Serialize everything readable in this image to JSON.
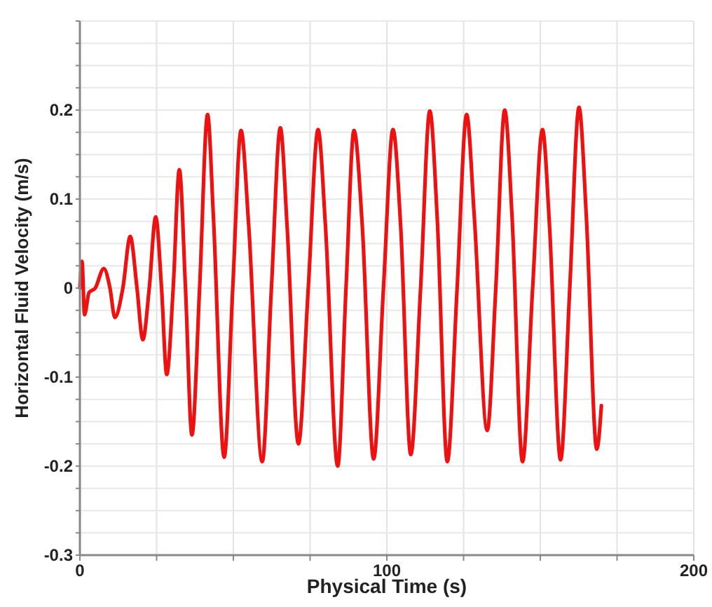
{
  "chart_data": {
    "type": "line",
    "xlabel": "Physical Time (s)",
    "ylabel": "Horizontal Fluid Velocity (m/s)",
    "xlim": [
      0,
      200
    ],
    "ylim": [
      -0.3,
      0.3
    ],
    "xticks": [
      0,
      {
        "value": 25,
        "label": null
      },
      {
        "value": 50,
        "label": null
      },
      {
        "value": 75,
        "label": null
      },
      100,
      {
        "value": 125,
        "label": null
      },
      {
        "value": 150,
        "label": null
      },
      {
        "value": 175,
        "label": null
      },
      200
    ],
    "yticks": [
      -0.3,
      {
        "value": -0.275,
        "label": null
      },
      {
        "value": -0.25,
        "label": null
      },
      {
        "value": -0.225,
        "label": null
      },
      -0.2,
      {
        "value": -0.175,
        "label": null
      },
      {
        "value": -0.15,
        "label": null
      },
      {
        "value": -0.125,
        "label": null
      },
      -0.1,
      {
        "value": -0.075,
        "label": null
      },
      {
        "value": -0.05,
        "label": null
      },
      {
        "value": -0.025,
        "label": null
      },
      0,
      {
        "value": 0.025,
        "label": null
      },
      {
        "value": 0.05,
        "label": null
      },
      {
        "value": 0.075,
        "label": null
      },
      0.1,
      {
        "value": 0.125,
        "label": null
      },
      {
        "value": 0.15,
        "label": null
      },
      {
        "value": 0.175,
        "label": null
      },
      0.2,
      {
        "value": 0.225,
        "label": null
      },
      {
        "value": 0.25,
        "label": null
      },
      {
        "value": 0.275,
        "label": null
      },
      {
        "value": 0.3,
        "label": null
      }
    ],
    "grid": true,
    "marker": "none",
    "line_style": "solid",
    "series": [
      {
        "color": "#ee1111",
        "x": [
          0,
          0.7,
          1.5,
          3,
          5,
          7.8,
          9.8,
          11.4,
          14,
          16.4,
          18.6,
          20.5,
          22.6,
          24.7,
          26.6,
          28.3,
          30.4,
          32.4,
          34.4,
          36.5,
          39,
          41.6,
          43.5,
          47,
          49.8,
          52.5,
          55,
          59.4,
          62.4,
          65.3,
          67.5,
          71.2,
          74.4,
          77.6,
          80,
          84,
          86.7,
          89.3,
          92,
          95.7,
          98.9,
          102,
          104.5,
          107.8,
          111,
          114,
          116.4,
          119.7,
          122.9,
          126,
          128.5,
          132.7,
          135.5,
          138.4,
          140.8,
          144.2,
          147.5,
          150.7,
          153,
          156.6,
          159.6,
          162.6,
          165,
          168.4,
          169.9
        ],
        "values": [
          0,
          0.03,
          -0.03,
          -0.005,
          0,
          0.022,
          0,
          -0.033,
          0,
          0.058,
          0,
          -0.058,
          0,
          0.08,
          0,
          -0.097,
          0,
          0.133,
          0,
          -0.165,
          0,
          0.195,
          0.08,
          -0.19,
          0,
          0.177,
          0.07,
          -0.195,
          0,
          0.18,
          0.07,
          -0.175,
          0,
          0.178,
          0.07,
          -0.2,
          0,
          0.177,
          0.07,
          -0.192,
          0,
          0.178,
          0.07,
          -0.187,
          0,
          0.199,
          0.08,
          -0.195,
          0,
          0.195,
          0.08,
          -0.16,
          0,
          0.2,
          0.08,
          -0.195,
          0,
          0.178,
          0.07,
          -0.193,
          0,
          0.203,
          0.08,
          -0.181,
          -0.132
        ]
      }
    ]
  }
}
